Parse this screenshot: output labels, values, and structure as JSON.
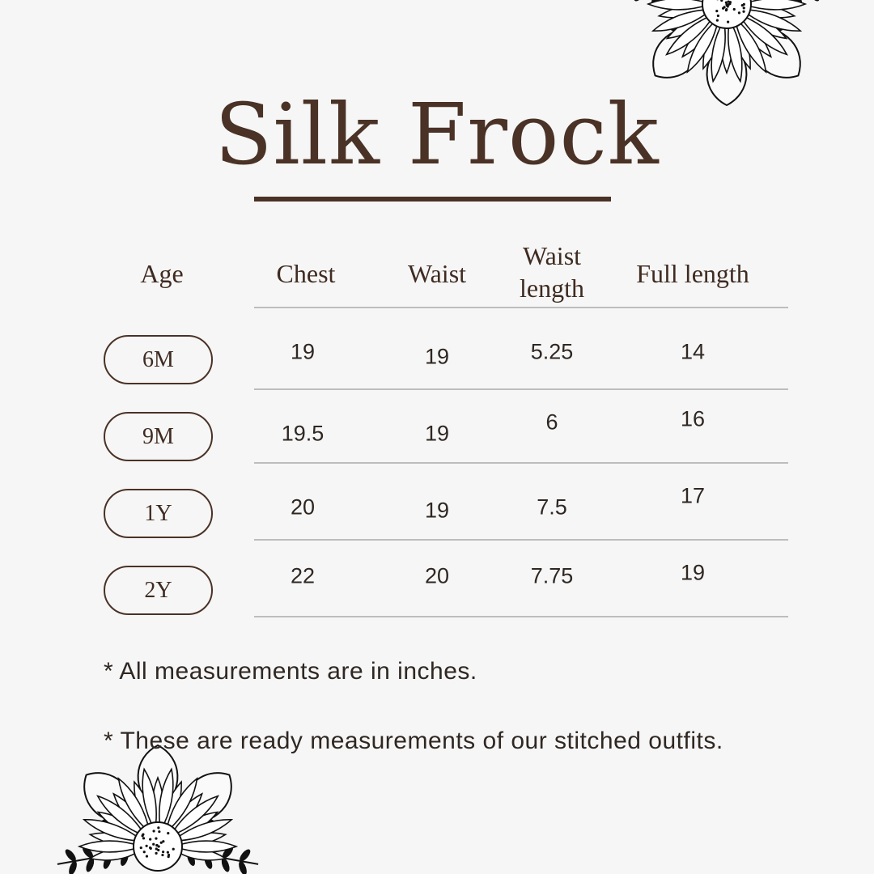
{
  "title": "Silk Frock",
  "table": {
    "headers": [
      "Age",
      "Chest",
      "Waist",
      "Waist length",
      "Full length"
    ],
    "rows": [
      {
        "age": "6M",
        "chest": "19",
        "waist": "19",
        "waist_length": "5.25",
        "full_length": "14"
      },
      {
        "age": "9M",
        "chest": "19.5",
        "waist": "19",
        "waist_length": "6",
        "full_length": "16"
      },
      {
        "age": "1Y",
        "chest": "20",
        "waist": "19",
        "waist_length": "7.5",
        "full_length": "17"
      },
      {
        "age": "2Y",
        "chest": "22",
        "waist": "20",
        "waist_length": "7.75",
        "full_length": "19"
      }
    ]
  },
  "notes": [
    "* All measurements are in inches.",
    "* These are ready measurements of our stitched outfits."
  ],
  "decorations": [
    "sunflower-icon",
    "sunflower-icon"
  ],
  "colors": {
    "background": "#f6f6f6",
    "brown": "#4a3226",
    "rule": "#bdbdbd"
  }
}
